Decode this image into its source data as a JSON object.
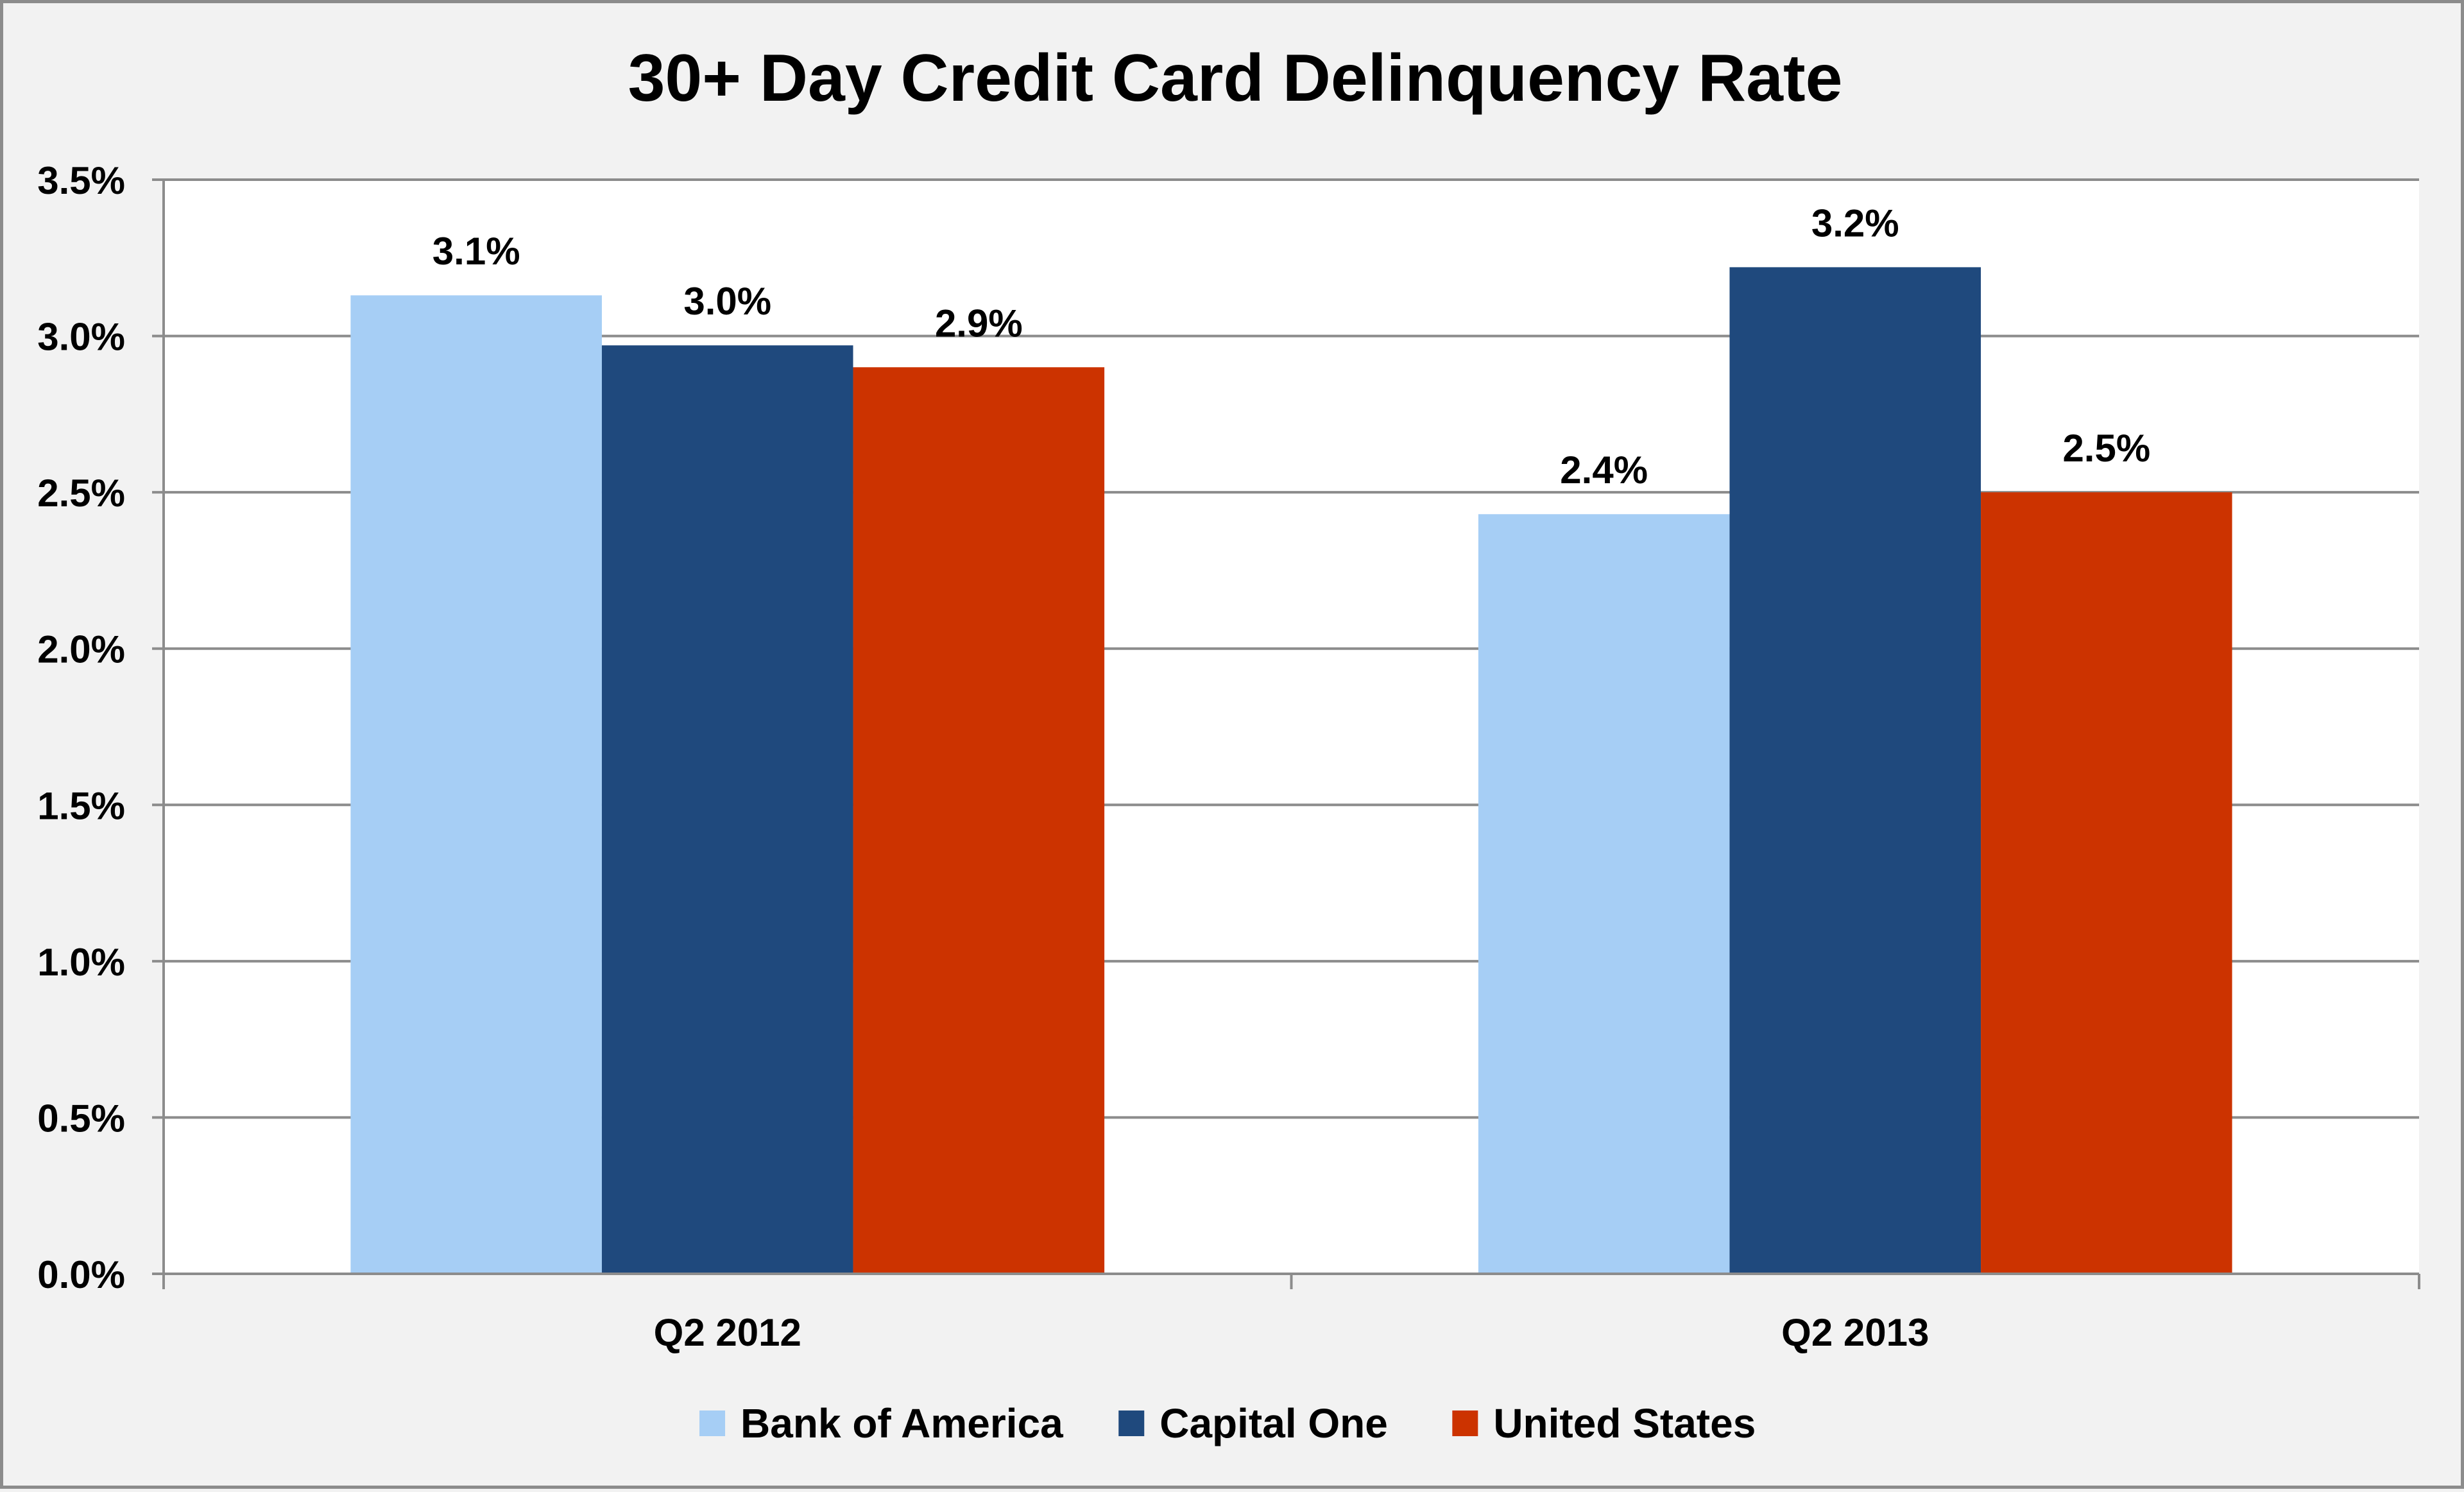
{
  "chart_data": {
    "type": "bar",
    "title": "30+ Day Credit Card Delinquency Rate",
    "categories": [
      "Q2 2012",
      "Q2 2013"
    ],
    "series": [
      {
        "name": "Bank of America",
        "color": "#a6cef5",
        "values": [
          3.13,
          2.43
        ],
        "labels": [
          "3.1%",
          "2.4%"
        ]
      },
      {
        "name": "Capital One",
        "color": "#1f497d",
        "values": [
          2.97,
          3.22
        ],
        "labels": [
          "3.0%",
          "3.2%"
        ]
      },
      {
        "name": "United States",
        "color": "#cc3300",
        "values": [
          2.9,
          2.5
        ],
        "labels": [
          "2.9%",
          "2.5%"
        ]
      }
    ],
    "ylim": [
      0,
      3.5
    ],
    "yticks": [
      0,
      0.5,
      1.0,
      1.5,
      2.0,
      2.5,
      3.0,
      3.5
    ],
    "ytick_labels": [
      "0.0%",
      "0.5%",
      "1.0%",
      "1.5%",
      "2.0%",
      "2.5%",
      "3.0%",
      "3.5%"
    ],
    "xlabel": "",
    "ylabel": "",
    "grid": true,
    "legend_position": "bottom"
  }
}
